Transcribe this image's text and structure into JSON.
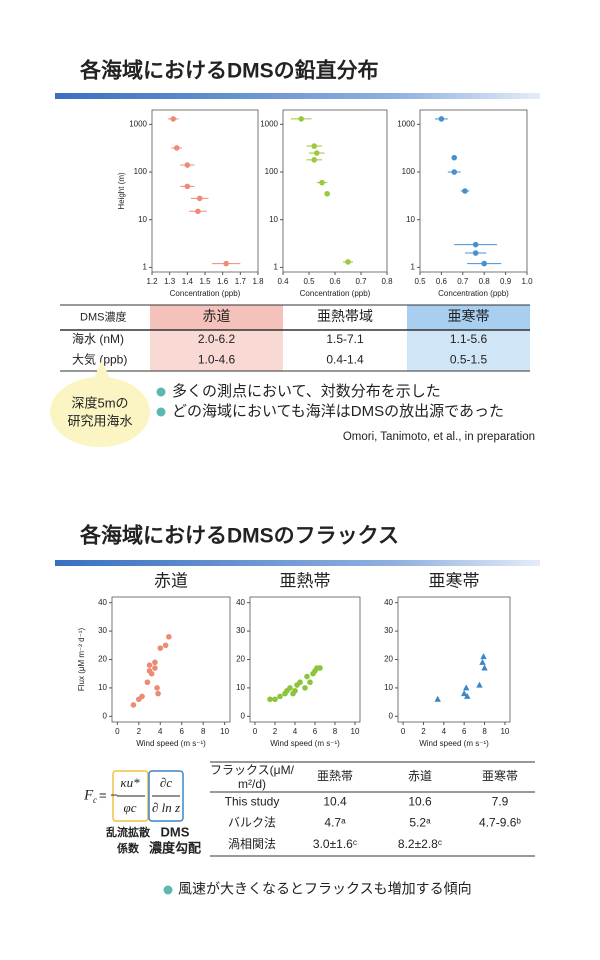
{
  "profiles": {
    "title": "各海域におけるDMSの鉛直分布",
    "charts": [
      {
        "type": "scatter",
        "color": "#f08a78",
        "xlabel": "Concentration (ppb)",
        "ylabel": "Height (m)",
        "log_y": true,
        "xlim": [
          1.2,
          1.8
        ],
        "xticks": [
          1.2,
          1.3,
          1.4,
          1.5,
          1.6,
          1.7,
          1.8
        ],
        "ylim": [
          0.8,
          2000
        ],
        "yticks": [
          1,
          10,
          100,
          1000
        ],
        "x": [
          1.32,
          1.34,
          1.4,
          1.4,
          1.47,
          1.46,
          1.62
        ],
        "values": [
          1300,
          320,
          140,
          50,
          28,
          15,
          1.2
        ],
        "errors": [
          0.03,
          0.03,
          0.04,
          0.04,
          0.05,
          0.05,
          0.08
        ]
      },
      {
        "type": "scatter",
        "color": "#9cc83c",
        "xlabel": "Concentration (ppb)",
        "log_y": true,
        "xlim": [
          0.4,
          0.8
        ],
        "xticks": [
          0.4,
          0.5,
          0.6,
          0.7,
          0.8
        ],
        "ylim": [
          0.8,
          2000
        ],
        "yticks": [
          1,
          10,
          100,
          1000
        ],
        "x": [
          0.47,
          0.52,
          0.53,
          0.52,
          0.55,
          0.57,
          0.65
        ],
        "values": [
          1300,
          350,
          250,
          180,
          60,
          35,
          1.3
        ],
        "errors": [
          0.04,
          0.03,
          0.03,
          0.03,
          0.02,
          0.01,
          0.02
        ]
      },
      {
        "type": "scatter",
        "color": "#4a90d0",
        "xlabel": "Concentration (ppb)",
        "log_y": true,
        "xlim": [
          0.5,
          1.0
        ],
        "xticks": [
          0.5,
          0.6,
          0.7,
          0.8,
          0.9,
          {
            "value": 1,
            "label": "1.0"
          }
        ],
        "ylim": [
          0.8,
          2000
        ],
        "yticks": [
          1,
          10,
          100,
          1000
        ],
        "x": [
          0.6,
          0.66,
          0.66,
          0.71,
          0.76,
          0.76,
          0.8
        ],
        "values": [
          1300,
          200,
          100,
          40,
          3,
          2,
          1.2
        ],
        "errors": [
          0.03,
          0.01,
          0.03,
          0.02,
          0.1,
          0.05,
          0.08
        ]
      }
    ],
    "table": {
      "header": [
        "DMS濃度",
        "赤道",
        "亜熱帯域",
        "亜寒帯"
      ],
      "rows": [
        [
          "海水 (nM)",
          "2.0-6.2",
          "1.5-7.1",
          "1.1-5.6"
        ],
        [
          "大気 (ppb)",
          "1.0-4.6",
          "0.4-1.4",
          "0.5-1.5"
        ]
      ]
    },
    "note": [
      "深度5mの",
      "研究用海水"
    ],
    "bullets": [
      "多くの測点において、対数分布を示した",
      "どの海域においても海洋はDMSの放出源であった"
    ],
    "citation": "Omori, Tanimoto, et al., in preparation"
  },
  "flux": {
    "title": "各海域におけるDMSのフラックス",
    "charts": [
      {
        "type": "scatter",
        "title": "赤道",
        "color": "#ec8a74",
        "xlabel": "Wind speed (m s⁻¹)",
        "ylabel": "Flux (μM m⁻² d⁻¹)",
        "xlim": [
          -0.5,
          10.5
        ],
        "xticks": [
          0,
          2,
          4,
          6,
          8,
          10
        ],
        "ylim": [
          -2,
          42
        ],
        "yticks": [
          0,
          10,
          20,
          30,
          40
        ],
        "x": [
          1.5,
          2,
          2.3,
          2.8,
          3,
          3,
          3.2,
          3.5,
          3.5,
          3.7,
          3.8,
          4,
          4.5,
          4.8
        ],
        "values": [
          4,
          6,
          7,
          12,
          18,
          16,
          15,
          17,
          19,
          10,
          8,
          24,
          25,
          28
        ]
      },
      {
        "type": "scatter",
        "title": "亜熱帯",
        "color": "#8cc43a",
        "xlabel": "Wind speed (m s⁻¹)",
        "xlim": [
          -0.5,
          10.5
        ],
        "xticks": [
          0,
          2,
          4,
          6,
          8,
          10
        ],
        "ylim": [
          -2,
          42
        ],
        "yticks": [
          0,
          10,
          20,
          30,
          40
        ],
        "x": [
          1.5,
          2,
          2.5,
          3,
          3.2,
          3.5,
          3.8,
          4,
          4.2,
          4.5,
          5,
          5.2,
          5.5,
          5.8,
          6,
          6.2,
          6.5
        ],
        "values": [
          6,
          6,
          7,
          8,
          9,
          10,
          8,
          9,
          11,
          12,
          10,
          14,
          12,
          15,
          16,
          17,
          17
        ]
      },
      {
        "type": "scatter",
        "title": "亜寒帯",
        "color": "#3b86c8",
        "marker": "triangle",
        "xlabel": "Wind speed (m s⁻¹)",
        "xlim": [
          -0.5,
          10.5
        ],
        "xticks": [
          0,
          2,
          4,
          6,
          8,
          10
        ],
        "ylim": [
          -2,
          42
        ],
        "yticks": [
          0,
          10,
          20,
          30,
          40
        ],
        "x": [
          3.4,
          6,
          6.2,
          6.3,
          7.5,
          7.8,
          7.9,
          8
        ],
        "values": [
          6,
          8,
          10,
          7,
          11,
          19,
          21,
          17
        ]
      }
    ],
    "formula": {
      "lhs": "F",
      "lhs_sub": "c",
      "eq": "= −",
      "kappa": "κu*",
      "phi": "φc",
      "dc": "∂c",
      "dlnz": "∂ ln z",
      "label1": [
        "乱流拡散",
        "係数"
      ],
      "label2": [
        "DMS",
        "濃度勾配"
      ]
    },
    "table": {
      "header_label": [
        "フラックス(μM/",
        "m²/d)"
      ],
      "header": [
        "亜熱帯",
        "赤道",
        "亜寒帯"
      ],
      "rows": [
        [
          "This study",
          "10.4",
          "10.6",
          "7.9"
        ],
        [
          "バルク法",
          "4.7ᵃ",
          "5.2ᵃ",
          "4.7-9.6ᵇ"
        ],
        [
          "渦相関法",
          "3.0±1.6ᶜ",
          "8.2±2.8ᶜ"
        ]
      ]
    },
    "bullet": "風速が大きくなるとフラックスも増加する傾向"
  }
}
